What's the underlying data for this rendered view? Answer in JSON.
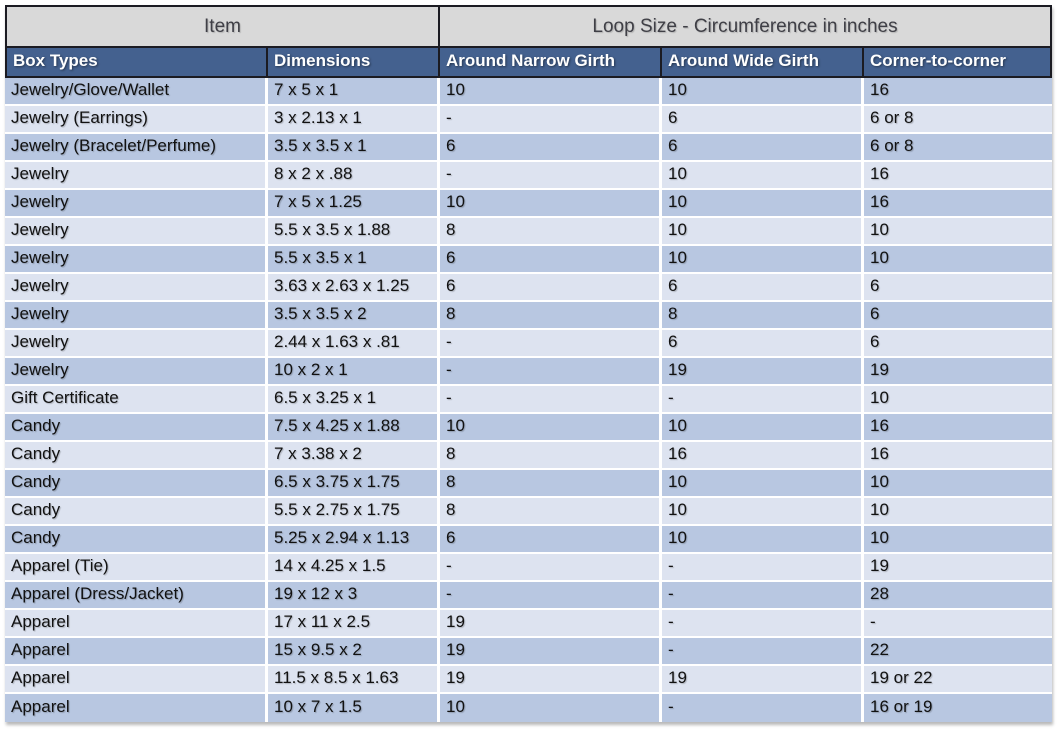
{
  "table": {
    "top_header": {
      "item_label": "Item",
      "item_colspan": 2,
      "loop_size_label": "Loop Size - Circumference in inches",
      "loop_size_colspan": 3
    },
    "columns": [
      "Box Types",
      "Dimensions",
      "Around Narrow Girth",
      "Around Wide Girth",
      "Corner-to-corner"
    ],
    "rows": [
      [
        "Jewelry/Glove/Wallet",
        "7 x 5 x 1",
        "10",
        "10",
        "16"
      ],
      [
        "Jewelry (Earrings)",
        "3 x 2.13 x 1",
        "-",
        "6",
        "6 or 8"
      ],
      [
        "Jewelry (Bracelet/Perfume)",
        "3.5 x 3.5 x 1",
        "6",
        "6",
        "6 or 8"
      ],
      [
        "Jewelry",
        "8 x 2 x .88",
        "-",
        "10",
        "16"
      ],
      [
        "Jewelry",
        "7 x 5 x 1.25",
        "10",
        "10",
        "16"
      ],
      [
        "Jewelry",
        "5.5 x 3.5 x 1.88",
        "8",
        "10",
        "10"
      ],
      [
        "Jewelry",
        "5.5 x 3.5 x 1",
        "6",
        "10",
        "10"
      ],
      [
        "Jewelry",
        "3.63 x 2.63 x 1.25",
        "6",
        "6",
        "6"
      ],
      [
        "Jewelry",
        "3.5 x 3.5 x 2",
        "8",
        "8",
        "6"
      ],
      [
        "Jewelry",
        "2.44 x 1.63 x .81",
        "-",
        "6",
        "6"
      ],
      [
        "Jewelry",
        "10 x 2 x 1",
        "-",
        "19",
        "19"
      ],
      [
        "Gift Certificate",
        "6.5 x 3.25 x 1",
        "-",
        "-",
        "10"
      ],
      [
        "Candy",
        "7.5 x 4.25 x 1.88",
        "10",
        "10",
        "16"
      ],
      [
        "Candy",
        "7 x 3.38 x 2",
        "8",
        "16",
        "16"
      ],
      [
        "Candy",
        "6.5 x 3.75 x 1.75",
        "8",
        "10",
        "10"
      ],
      [
        "Candy",
        "5.5 x 2.75 x 1.75",
        "8",
        "10",
        "10"
      ],
      [
        "Candy",
        "5.25 x 2.94 x 1.13",
        "6",
        "10",
        "10"
      ],
      [
        "Apparel (Tie)",
        "14 x 4.25 x 1.5",
        "-",
        "-",
        "19"
      ],
      [
        "Apparel (Dress/Jacket)",
        "19 x 12 x 3",
        "-",
        "-",
        "28"
      ],
      [
        "Apparel",
        "17 x 11 x 2.5",
        "19",
        "-",
        "-"
      ],
      [
        "Apparel",
        "15 x 9.5 x 2",
        "19",
        "-",
        "22"
      ],
      [
        "Apparel",
        "11.5 x 8.5 x 1.63",
        "19",
        "19",
        "19 or 22"
      ],
      [
        "Apparel",
        "10 x 7 x 1.5",
        "10",
        "-",
        "16 or 19"
      ]
    ],
    "colors": {
      "header-gray": "#d9d9d9",
      "header-blue": "#44618f",
      "band-dark": "#b8c7e1",
      "band-light": "#dde3f0",
      "border-dark": "#1b1b22",
      "separator-white": "#ffffff",
      "data-text": "#111111",
      "header-text": "#ffffff",
      "gray-header-text": "#3f3f46"
    }
  }
}
